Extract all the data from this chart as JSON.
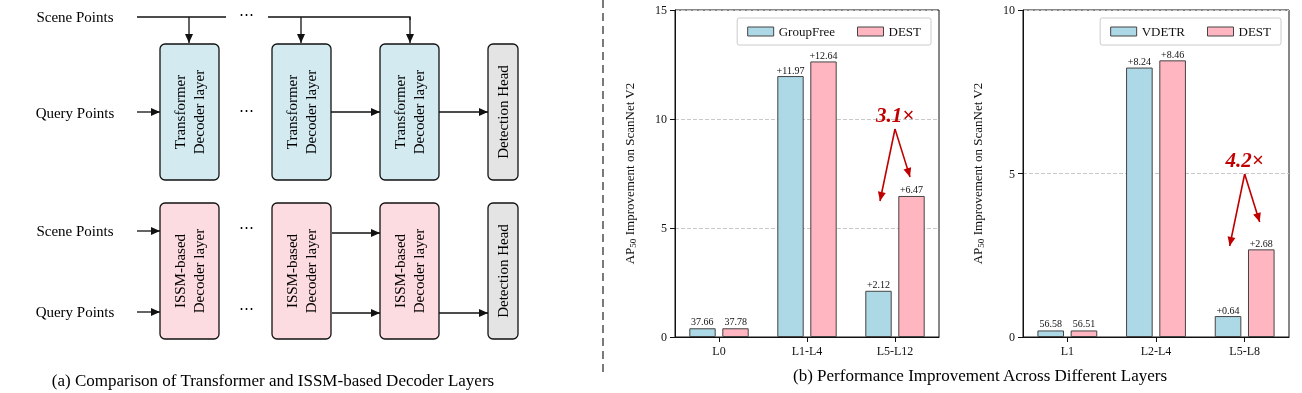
{
  "chart_data": [
    {
      "type": "other",
      "annotations": [
        "Scene Points",
        "Query Points",
        "Transformer Decoder layer",
        "ISSM-based Decoder layer",
        "Detection Head",
        "⋯",
        "(a) Comparison of Transformer and ISSM-based Decoder Layers"
      ]
    },
    {
      "type": "bar",
      "categories": [
        "L0",
        "L1-L4",
        "L5-L12"
      ],
      "ylabel": "AP$_{50}$ Improvement on ScanNet V2",
      "ylim": [
        0,
        15
      ],
      "yticks": [
        0,
        5,
        10,
        15
      ],
      "grid": "y",
      "legend": "top right",
      "series": [
        {
          "name": "GroupFree",
          "color": "#add8e6",
          "values": [
            0.4,
            11.97,
            2.12
          ],
          "value_labels": [
            null,
            "+11.97",
            "+2.12"
          ]
        },
        {
          "name": "DEST",
          "color": "#ffb6c1",
          "values": [
            0.4,
            12.64,
            6.47
          ],
          "value_labels": [
            null,
            "+12.64",
            "+6.47"
          ]
        }
      ],
      "title": "(b) Performance Improvement Across Different Layers",
      "annotations": [
        "3.1×",
        {
          "text": "37.66",
          "x": "L0",
          "y": 0.4
        },
        {
          "text": "37.78",
          "x": "L0",
          "y": 0.4
        }
      ]
    },
    {
      "type": "bar",
      "categories": [
        "L1",
        "L2-L4",
        "L5-L8"
      ],
      "ylabel": "AP$_{50}$ Improvement on ScanNet V2",
      "ylim": [
        0,
        10
      ],
      "yticks": [
        0,
        5,
        10
      ],
      "grid": "y",
      "legend": "top right",
      "series": [
        {
          "name": "VDETR",
          "color": "#add8e6",
          "values": [
            0.2,
            8.24,
            0.64
          ],
          "value_labels": [
            null,
            "+8.24",
            "+0.64"
          ]
        },
        {
          "name": "DEST",
          "color": "#ffb6c1",
          "values": [
            0.2,
            8.46,
            2.68
          ],
          "value_labels": [
            null,
            "+8.46",
            "+2.68"
          ]
        }
      ],
      "annotations": [
        "4.2×",
        {
          "text": "56.58",
          "x": "L1",
          "y": 0.2
        },
        {
          "text": "56.51",
          "x": "L1",
          "y": 0.2
        }
      ]
    }
  ]
}
